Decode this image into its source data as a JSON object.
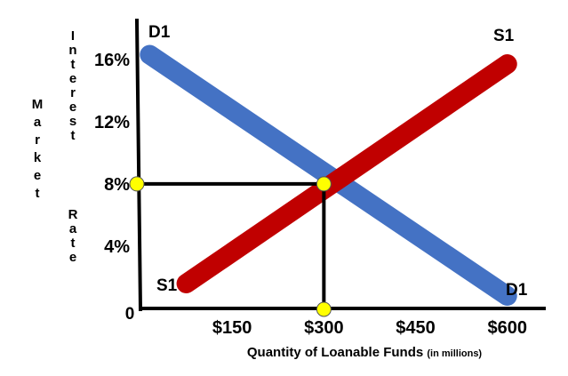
{
  "chart_data": {
    "type": "line",
    "title": "",
    "xlabel_main": "Quantity of Loanable Funds",
    "xlabel_note": "(in millions)",
    "ylabel_words": [
      "Market",
      "Interest",
      "Rate"
    ],
    "x_ticks": [
      "$150",
      "$300",
      "$450",
      "$600"
    ],
    "x_tick_values": [
      150,
      300,
      450,
      600
    ],
    "y_ticks": [
      "4%",
      "8%",
      "12%",
      "16%"
    ],
    "y_tick_values": [
      4,
      8,
      12,
      16
    ],
    "origin_label": "0",
    "xlim": [
      0,
      660
    ],
    "ylim": [
      0,
      18.5
    ],
    "grid": false,
    "series": [
      {
        "name": "D1",
        "color": "#4472c4",
        "x": [
          15,
          600
        ],
        "y": [
          16.3,
          0.8
        ],
        "start_label": "D1",
        "end_label": "D1"
      },
      {
        "name": "S1",
        "color": "#c00000",
        "x": [
          75,
          600
        ],
        "y": [
          1.6,
          15.7
        ],
        "start_label": "S1",
        "end_label": "S1"
      }
    ],
    "equilibrium": {
      "x": 300,
      "y": 8
    },
    "marker_color": "#ffff00"
  }
}
